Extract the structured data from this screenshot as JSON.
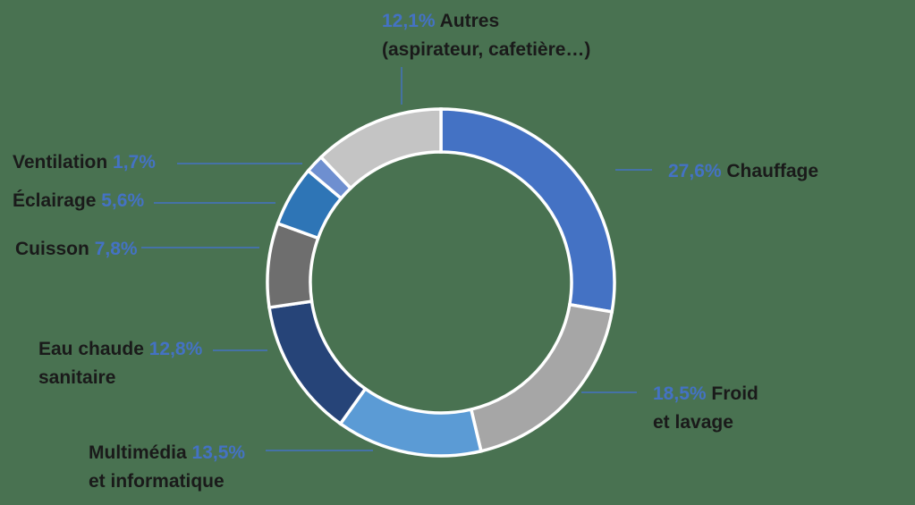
{
  "background_color": "#497251",
  "accent_color": "#4472C4",
  "text_color": "#1A1A1A",
  "chart_data": {
    "type": "donut",
    "title": "",
    "unit": "%",
    "start_angle_deg": 0,
    "direction": "clockwise",
    "legend": "none",
    "label_style": "callouts with blue leader lines, percentages in blue, names in black",
    "segments": [
      {
        "id": "chauffage",
        "label": "Chauffage",
        "value": 27.6,
        "display": "27,6%",
        "color": "#4472C4"
      },
      {
        "id": "froid",
        "label": "Froid et lavage",
        "value": 18.5,
        "display": "18,5%",
        "color": "#A6A6A6"
      },
      {
        "id": "multimedia",
        "label": "Multimédia et informatique",
        "value": 13.5,
        "display": "13,5%",
        "color": "#5B9BD5"
      },
      {
        "id": "eau_chaude",
        "label": "Eau chaude sanitaire",
        "value": 12.8,
        "display": "12,8%",
        "color": "#264478"
      },
      {
        "id": "cuisson",
        "label": "Cuisson",
        "value": 7.8,
        "display": "7,8%",
        "color": "#6E6E6E"
      },
      {
        "id": "eclairage",
        "label": "Éclairage",
        "value": 5.6,
        "display": "5,6%",
        "color": "#2E75B6"
      },
      {
        "id": "ventilation",
        "label": "Ventilation",
        "value": 1.7,
        "display": "1,7%",
        "color": "#6E8FD0"
      },
      {
        "id": "autres",
        "label": "Autres (aspirateur, cafetière…)",
        "value": 12.1,
        "display": "12,1%",
        "color": "#C4C4C4"
      }
    ]
  },
  "labels": {
    "autres": {
      "pct": "12,1%",
      "name": "Autres",
      "line2": "(aspirateur, cafetière…)"
    },
    "chauffage": {
      "pct": "27,6%",
      "name": "Chauffage"
    },
    "froid": {
      "pct": "18,5%",
      "name": "Froid",
      "line2": "et lavage"
    },
    "multimedia": {
      "name": "Multimédia",
      "pct": "13,5%",
      "line2": "et informatique"
    },
    "eau_chaude": {
      "name": "Eau chaude",
      "pct": "12,8%",
      "line2": "sanitaire"
    },
    "cuisson": {
      "name": "Cuisson",
      "pct": "7,8%"
    },
    "eclairage": {
      "name": "Éclairage",
      "pct": "5,6%"
    },
    "ventilation": {
      "name": "Ventilation",
      "pct": "1,7%"
    }
  }
}
